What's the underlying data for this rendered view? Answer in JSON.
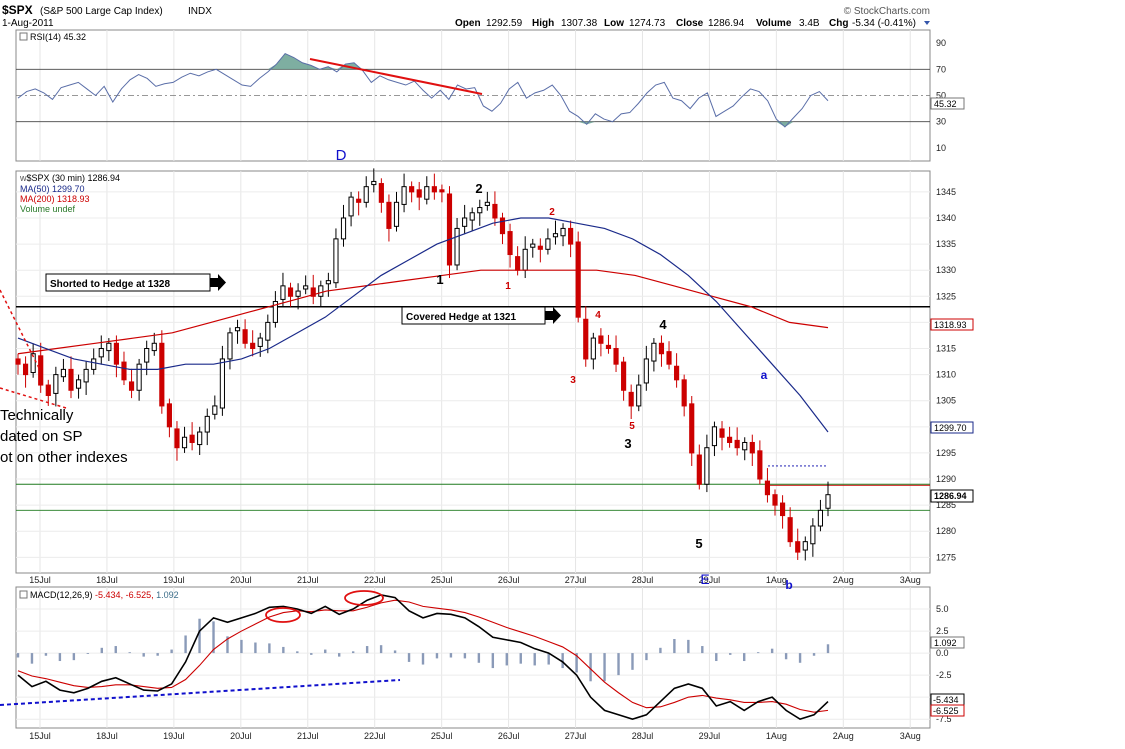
{
  "header": {
    "symbol": "$SPX",
    "name": "(S&P 500 Large Cap Index)",
    "exchange": "INDX",
    "date": "1-Aug-2011",
    "brand": "© StockCharts.com",
    "quote": {
      "open_label": "Open",
      "open": "1292.59",
      "high_label": "High",
      "high": "1307.38",
      "low_label": "Low",
      "low": "1274.73",
      "close_label": "Close",
      "close": "1286.94",
      "volume_label": "Volume",
      "volume": "3.4B",
      "chg_label": "Chg",
      "chg": "-5.34 (-0.41%)"
    }
  },
  "colors": {
    "up": "#000000",
    "down": "#cc0000",
    "ma50": "#1a2a8a",
    "ma200": "#cc0000",
    "rsi": "#5a6ea8",
    "accent_blue": "#1010cc"
  },
  "chart_data": [
    {
      "type": "line",
      "title": "RSI(14) 45.32",
      "levels": [
        70,
        50,
        30
      ],
      "ylim": [
        0,
        100
      ],
      "ticks": [
        "90",
        "70",
        "50",
        "30",
        "10"
      ],
      "last_value_label": "45.32",
      "series": [
        {
          "name": "RSI(14)",
          "values": [
            48,
            53,
            55,
            52,
            47,
            56,
            58,
            60,
            55,
            50,
            57,
            45,
            55,
            62,
            66,
            63,
            57,
            59,
            60,
            64,
            67,
            65,
            68,
            70,
            66,
            62,
            58,
            57,
            63,
            68,
            74,
            82,
            79,
            75,
            73,
            70,
            72,
            68,
            74,
            75,
            69,
            60,
            65,
            62,
            60,
            58,
            61,
            54,
            48,
            54,
            47,
            58,
            55,
            56,
            42,
            38,
            44,
            55,
            60,
            48,
            52,
            54,
            58,
            50,
            38,
            34,
            28,
            36,
            32,
            30,
            36,
            37,
            44,
            52,
            58,
            60,
            48,
            46,
            40,
            48,
            52,
            34,
            38,
            42,
            49,
            55,
            53,
            46,
            32,
            26,
            33,
            40,
            50,
            53,
            46
          ]
        }
      ]
    },
    {
      "type": "candlestick",
      "title": "$SPX (30 min) 1286.94",
      "ylim": [
        1272,
        1349
      ],
      "yticks": [
        1275,
        1280,
        1285,
        1290,
        1295,
        1300,
        1305,
        1310,
        1315,
        1320,
        1325,
        1330,
        1335,
        1340,
        1345
      ],
      "x_dates": [
        "15Jul",
        "18Jul",
        "19Jul",
        "20Jul",
        "21Jul",
        "22Jul",
        "25Jul",
        "26Jul",
        "27Jul",
        "28Jul",
        "29Jul",
        "1Aug",
        "2Aug",
        "3Aug"
      ],
      "legend": [
        "MA(50) 1299.70",
        "MA(200) 1318.93",
        "Volume undef"
      ],
      "closes": [
        1312,
        1310,
        1314,
        1308,
        1306,
        1310,
        1311,
        1307,
        1309,
        1311,
        1313,
        1315,
        1316,
        1312,
        1309,
        1307,
        1312,
        1315,
        1316,
        1304,
        1300,
        1296,
        1298,
        1297,
        1299,
        1302,
        1304,
        1313,
        1318,
        1319,
        1316,
        1315,
        1317,
        1320,
        1324,
        1327,
        1325,
        1326,
        1327,
        1325,
        1327,
        1328,
        1336,
        1340,
        1344,
        1343,
        1346,
        1347,
        1343,
        1338,
        1343,
        1346,
        1345,
        1344,
        1346,
        1345,
        1345,
        1331,
        1338,
        1340,
        1341,
        1342,
        1343,
        1340,
        1337,
        1333,
        1330,
        1334,
        1335,
        1334,
        1336,
        1337,
        1338,
        1335,
        1321,
        1313,
        1317,
        1316,
        1315,
        1312,
        1307,
        1304,
        1308,
        1313,
        1316,
        1314,
        1312,
        1309,
        1304,
        1295,
        1289,
        1296,
        1300,
        1298,
        1297,
        1296,
        1297,
        1295,
        1290,
        1287,
        1285,
        1283,
        1278,
        1276,
        1278,
        1281,
        1284,
        1287
      ],
      "ma50": {
        "name": "MA(50)",
        "value_label": "1299.70",
        "values": [
          1317,
          1315,
          1313,
          1312,
          1311,
          1311,
          1312,
          1312,
          1313,
          1315,
          1318,
          1321,
          1325,
          1329,
          1332,
          1335,
          1337,
          1339,
          1340,
          1340,
          1339,
          1338,
          1336,
          1333,
          1329,
          1324,
          1318,
          1312,
          1306,
          1299
        ]
      },
      "ma200": {
        "name": "MA(200)",
        "value_label": "1318.93",
        "values": [
          1314,
          1315,
          1316,
          1317,
          1318,
          1320,
          1322,
          1324,
          1326,
          1327,
          1328,
          1329,
          1330,
          1330,
          1330,
          1330,
          1329,
          1327,
          1325,
          1323,
          1320,
          1319
        ]
      },
      "hlines": [
        {
          "value": 1323,
          "color": "#000000"
        },
        {
          "value": 1289,
          "color": "#1f7a1f"
        },
        {
          "value": 1284,
          "color": "#1f7a1f"
        },
        {
          "value": 1292.5,
          "color": "#0000aa",
          "dashed": true
        }
      ],
      "close_label": "1286.94",
      "annotations": {
        "short_box": "Shorted to Hedge at 1328",
        "cover_box": "Covered Hedge at 1321",
        "note_lines": [
          "Technically",
          "dated on SP",
          "ot on other indexes"
        ],
        "wave_D": "D",
        "wave_E": "E",
        "w1": "1",
        "w2": "2",
        "w3": "3",
        "w4": "4",
        "w5": "5",
        "r1": "1",
        "r2": "2",
        "r3": "3",
        "r4": "4",
        "r5": "5",
        "wa": "a",
        "wb": "b"
      }
    },
    {
      "type": "line",
      "title": "MACD(12,26,9) -5.434, -6.525, 1.092",
      "title_macd": "MACD(12,26,9)",
      "title_values": "-5.434, -6.525,",
      "title_hist": "1.092",
      "ylim": [
        -8.5,
        7.5
      ],
      "ticks": [
        "5.0",
        "2.5",
        "0.0",
        "-2.5",
        "-5.0",
        "-7.5"
      ],
      "value_labels": [
        "1.092",
        "-5.434",
        "-6.525"
      ],
      "series": [
        {
          "name": "MACD",
          "values": [
            -2.5,
            -3.8,
            -3.2,
            -4.2,
            -4.5,
            -4.0,
            -3.2,
            -2.8,
            -3.5,
            -4.2,
            -4.3,
            -3.5,
            -1.0,
            2.5,
            4.0,
            3.5,
            4.0,
            4.5,
            5.2,
            5.3,
            5.0,
            4.5,
            5.3,
            4.4,
            5.0,
            6.0,
            6.6,
            6.3,
            4.8,
            4.0,
            4.5,
            4.4,
            4.0,
            3.0,
            1.8,
            1.5,
            1.2,
            0.5,
            0,
            -1.0,
            -2.5,
            -5.0,
            -6.5,
            -7.0,
            -7.5,
            -7.0,
            -5.5,
            -4.0,
            -3.5,
            -4.0,
            -6.0,
            -5.5,
            -6.5,
            -5.5,
            -5.0,
            -6.5,
            -7.5,
            -7.0,
            -5.5
          ]
        },
        {
          "name": "Signal",
          "values": [
            -2.0,
            -2.6,
            -2.9,
            -3.3,
            -3.7,
            -3.9,
            -3.8,
            -3.6,
            -3.6,
            -3.8,
            -4.0,
            -3.9,
            -3.0,
            -1.4,
            0.4,
            1.6,
            2.5,
            3.3,
            4.1,
            4.6,
            4.8,
            4.7,
            4.9,
            4.8,
            4.8,
            5.2,
            5.7,
            6.0,
            5.8,
            5.3,
            5.1,
            4.9,
            4.6,
            4.1,
            3.5,
            2.9,
            2.4,
            1.9,
            1.3,
            0.7,
            -0.3,
            -1.8,
            -3.3,
            -4.5,
            -5.6,
            -6.2,
            -6.1,
            -5.6,
            -5.0,
            -4.8,
            -5.1,
            -5.3,
            -5.6,
            -5.6,
            -5.5,
            -5.8,
            -6.4,
            -6.7,
            -6.5
          ]
        }
      ]
    }
  ]
}
